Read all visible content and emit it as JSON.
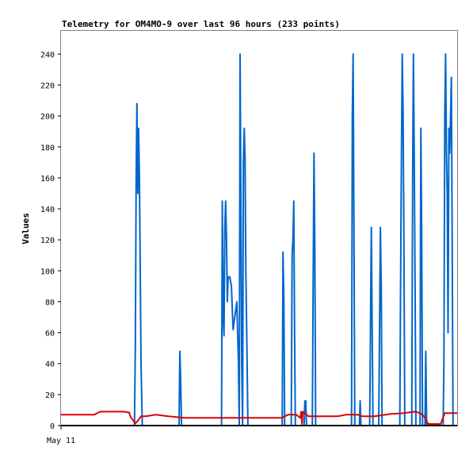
{
  "chart_data": {
    "type": "line",
    "title": "Telemetry for OM4MO-9 over last 96 hours (233 points)",
    "xlabel": "",
    "ylabel": "Values",
    "ylim": [
      0,
      255
    ],
    "yticks": [
      0,
      20,
      40,
      60,
      80,
      100,
      120,
      140,
      160,
      180,
      200,
      220,
      240
    ],
    "x_tick_labels": [
      {
        "label": "May 11",
        "t": 0
      }
    ],
    "x_range": [
      0,
      96
    ],
    "grid": false,
    "legend": "none",
    "series": [
      {
        "color": "#0066cc",
        "points": [
          [
            0,
            0
          ],
          [
            17.8,
            0
          ],
          [
            18.0,
            50
          ],
          [
            18.2,
            155
          ],
          [
            18.4,
            208
          ],
          [
            18.6,
            150
          ],
          [
            18.8,
            192
          ],
          [
            19.0,
            160
          ],
          [
            19.2,
            100
          ],
          [
            19.4,
            40
          ],
          [
            19.7,
            0
          ],
          [
            28.6,
            0
          ],
          [
            28.8,
            48
          ],
          [
            29.0,
            30
          ],
          [
            29.2,
            0
          ],
          [
            38.9,
            0
          ],
          [
            39.1,
            145
          ],
          [
            39.3,
            70
          ],
          [
            39.5,
            58
          ],
          [
            39.7,
            128
          ],
          [
            39.9,
            145
          ],
          [
            40.1,
            120
          ],
          [
            40.3,
            80
          ],
          [
            40.5,
            96
          ],
          [
            40.9,
            96
          ],
          [
            41.3,
            90
          ],
          [
            41.7,
            62
          ],
          [
            42.1,
            70
          ],
          [
            42.6,
            80
          ],
          [
            43.0,
            40
          ],
          [
            43.2,
            0
          ],
          [
            43.4,
            240
          ],
          [
            43.6,
            140
          ],
          [
            43.8,
            40
          ],
          [
            44.0,
            0
          ],
          [
            44.2,
            170
          ],
          [
            44.4,
            192
          ],
          [
            44.6,
            172
          ],
          [
            44.8,
            100
          ],
          [
            45.0,
            60
          ],
          [
            45.3,
            0
          ],
          [
            53.6,
            0
          ],
          [
            53.8,
            112
          ],
          [
            54.0,
            80
          ],
          [
            54.2,
            0
          ],
          [
            55.8,
            0
          ],
          [
            56.0,
            110
          ],
          [
            56.2,
            120
          ],
          [
            56.4,
            145
          ],
          [
            56.6,
            60
          ],
          [
            56.8,
            0
          ],
          [
            58.9,
            0
          ],
          [
            59.1,
            16
          ],
          [
            59.3,
            16
          ],
          [
            59.5,
            0
          ],
          [
            60.9,
            0
          ],
          [
            61.1,
            88
          ],
          [
            61.3,
            176
          ],
          [
            61.5,
            120
          ],
          [
            61.7,
            0
          ],
          [
            70.4,
            0
          ],
          [
            70.6,
            200
          ],
          [
            70.8,
            240
          ],
          [
            71.0,
            120
          ],
          [
            71.2,
            0
          ],
          [
            72.3,
            0
          ],
          [
            72.5,
            16
          ],
          [
            72.7,
            0
          ],
          [
            74.8,
            0
          ],
          [
            75.0,
            64
          ],
          [
            75.2,
            128
          ],
          [
            75.4,
            64
          ],
          [
            75.6,
            0
          ],
          [
            77.0,
            0
          ],
          [
            77.2,
            64
          ],
          [
            77.4,
            128
          ],
          [
            77.6,
            90
          ],
          [
            77.8,
            0
          ],
          [
            82.1,
            0
          ],
          [
            82.3,
            90
          ],
          [
            82.5,
            176
          ],
          [
            82.7,
            240
          ],
          [
            82.9,
            200
          ],
          [
            83.1,
            120
          ],
          [
            83.3,
            0
          ],
          [
            85.0,
            0
          ],
          [
            85.2,
            160
          ],
          [
            85.4,
            240
          ],
          [
            85.6,
            176
          ],
          [
            85.8,
            90
          ],
          [
            86.0,
            0
          ],
          [
            87.0,
            0
          ],
          [
            87.2,
            192
          ],
          [
            87.4,
            128
          ],
          [
            87.6,
            0
          ],
          [
            88.2,
            0
          ],
          [
            88.4,
            48
          ],
          [
            88.6,
            0
          ],
          [
            92.6,
            0
          ],
          [
            92.8,
            40
          ],
          [
            93.0,
            200
          ],
          [
            93.2,
            240
          ],
          [
            93.4,
            176
          ],
          [
            93.6,
            150
          ],
          [
            93.8,
            60
          ],
          [
            94.0,
            192
          ],
          [
            94.2,
            176
          ],
          [
            94.4,
            200
          ],
          [
            94.6,
            225
          ],
          [
            94.8,
            110
          ],
          [
            95.0,
            0
          ],
          [
            96,
            0
          ]
        ]
      },
      {
        "color": "#dd0000",
        "points": [
          [
            0,
            7
          ],
          [
            8,
            7
          ],
          [
            9.5,
            9
          ],
          [
            15,
            9
          ],
          [
            16.5,
            8.5
          ],
          [
            16.8,
            6
          ],
          [
            17,
            5
          ],
          [
            18,
            1.5
          ],
          [
            18.6,
            3
          ],
          [
            19.4,
            6
          ],
          [
            20.5,
            6
          ],
          [
            23,
            7
          ],
          [
            26,
            6
          ],
          [
            28,
            5.5
          ],
          [
            30,
            5
          ],
          [
            35,
            5
          ],
          [
            46,
            5
          ],
          [
            53.5,
            5
          ],
          [
            55,
            7
          ],
          [
            57,
            7
          ],
          [
            58,
            5
          ],
          [
            58.2,
            9
          ],
          [
            58.4,
            1
          ],
          [
            58.6,
            9
          ],
          [
            59,
            8
          ],
          [
            60,
            6
          ],
          [
            64,
            6
          ],
          [
            67,
            6
          ],
          [
            69,
            7
          ],
          [
            72,
            7
          ],
          [
            73,
            6
          ],
          [
            76,
            6
          ],
          [
            80,
            7.5
          ],
          [
            83,
            8
          ],
          [
            86,
            9
          ],
          [
            87,
            8
          ],
          [
            88,
            6
          ],
          [
            89,
            1
          ],
          [
            92,
            1
          ],
          [
            93,
            8
          ],
          [
            96,
            8
          ]
        ]
      },
      {
        "color": "#000000",
        "points": [
          [
            0,
            0
          ],
          [
            96,
            0
          ]
        ]
      }
    ]
  }
}
